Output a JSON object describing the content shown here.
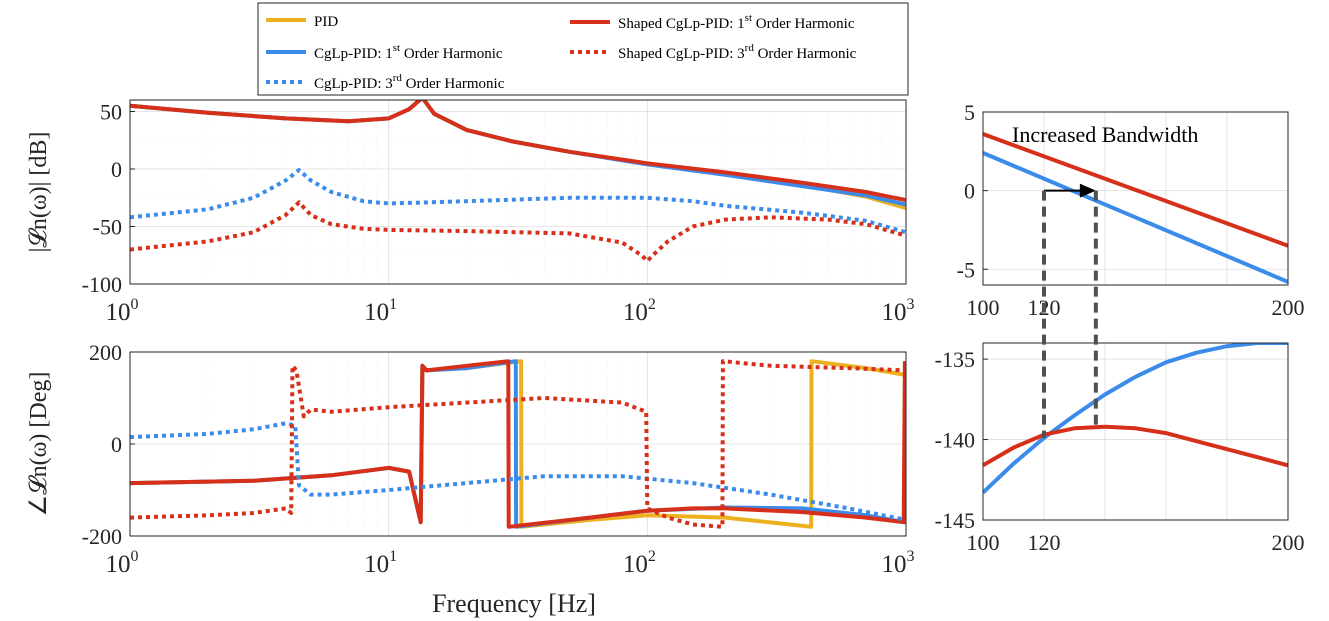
{
  "colors": {
    "pid": "#EDB120",
    "cglp": "#3B8BEB",
    "shaped": "#D7301A",
    "text": "#262626",
    "arrow": "#000000",
    "guide": "#505050"
  },
  "legend": {
    "entries": [
      {
        "id": "pid",
        "label": "PID",
        "sup": "",
        "suffix": ""
      },
      {
        "id": "cglp1",
        "label": "CgLp-PID: 1",
        "sup": "st",
        "suffix": " Order Harmonic"
      },
      {
        "id": "cglp3",
        "label": "CgLp-PID: 3",
        "sup": "rd",
        "suffix": " Order Harmonic"
      },
      {
        "id": "shaped1",
        "label": "Shaped CgLp-PID: 1",
        "sup": "st",
        "suffix": " Order Harmonic"
      },
      {
        "id": "shaped3",
        "label": "Shaped CgLp-PID: 3",
        "sup": "rd",
        "suffix": " Order Harmonic"
      }
    ]
  },
  "chart_data": [
    {
      "id": "magnitude",
      "type": "line",
      "title": "",
      "ylabel": "|𝓛n(ω)| [dB]",
      "xscale": "log",
      "xlim": [
        1,
        1000
      ],
      "ylim": [
        -100,
        60
      ],
      "yticks": [
        50,
        0,
        -50,
        -100
      ],
      "xticks": [
        {
          "base": "10",
          "exp": "0"
        },
        {
          "base": "10",
          "exp": "1"
        },
        {
          "base": "10",
          "exp": "2"
        },
        {
          "base": "10",
          "exp": "3"
        }
      ],
      "series": [
        {
          "name": "PID",
          "style": "pid",
          "x": [
            1,
            2,
            4,
            7,
            10,
            12,
            13.5,
            15,
            20,
            30,
            50,
            100,
            200,
            400,
            700,
            1000
          ],
          "y": [
            55,
            49,
            44,
            41.5,
            44,
            52,
            62,
            48,
            34,
            24,
            15,
            5,
            -4,
            -14,
            -24,
            -34
          ]
        },
        {
          "name": "CgLp-PID: 1st Order Harmonic",
          "style": "cglp",
          "x": [
            1,
            2,
            4,
            7,
            10,
            12,
            13.5,
            15,
            20,
            30,
            50,
            100,
            200,
            400,
            700,
            1000
          ],
          "y": [
            55,
            49,
            44,
            41.5,
            44,
            52,
            62,
            48,
            34,
            24,
            15,
            4,
            -5,
            -15,
            -23,
            -31
          ]
        },
        {
          "name": "Shaped CgLp-PID: 1st Order Harmonic",
          "style": "shaped",
          "x": [
            1,
            2,
            4,
            7,
            10,
            12,
            13.5,
            15,
            20,
            30,
            50,
            100,
            200,
            400,
            700,
            1000
          ],
          "y": [
            55,
            49,
            44,
            41.5,
            44,
            52,
            62,
            48,
            34,
            24,
            15,
            5,
            -3,
            -12,
            -20,
            -27
          ]
        },
        {
          "name": "CgLp-PID: 3rd Order Harmonic",
          "style": "cglp-dot",
          "x": [
            1,
            2,
            3,
            4,
            4.5,
            5,
            6,
            8,
            10,
            20,
            50,
            100,
            150,
            200,
            400,
            700,
            1000
          ],
          "y": [
            -42,
            -35,
            -25,
            -10,
            -1,
            -10,
            -20,
            -28,
            -30,
            -28,
            -25,
            -25,
            -28,
            -32,
            -38,
            -45,
            -55
          ]
        },
        {
          "name": "Shaped CgLp-PID: 3rd Order Harmonic",
          "style": "shaped-dot",
          "x": [
            1,
            2,
            3,
            4,
            4.5,
            5,
            6,
            8,
            10,
            20,
            50,
            80,
            95,
            100,
            105,
            120,
            150,
            200,
            300,
            500,
            700,
            1000
          ],
          "y": [
            -70,
            -63,
            -55,
            -40,
            -29,
            -40,
            -48,
            -52,
            -53,
            -54,
            -56,
            -64,
            -75,
            -80,
            -75,
            -63,
            -50,
            -44,
            -42,
            -44,
            -48,
            -58
          ]
        }
      ]
    },
    {
      "id": "phase",
      "type": "line",
      "title": "",
      "ylabel": "∠𝓛n(ω) [Deg]",
      "xlabel": "Frequency [Hz]",
      "xscale": "log",
      "xlim": [
        1,
        1000
      ],
      "ylim": [
        -200,
        200
      ],
      "yticks": [
        200,
        0,
        -200
      ],
      "xticks": [
        {
          "base": "10",
          "exp": "0"
        },
        {
          "base": "10",
          "exp": "1"
        },
        {
          "base": "10",
          "exp": "2"
        },
        {
          "base": "10",
          "exp": "3"
        }
      ],
      "series": [
        {
          "name": "PID",
          "style": "pid",
          "x": [
            1,
            3,
            6,
            10,
            12,
            13.3,
            13.5,
            14,
            20,
            32.5,
            32.6,
            60,
            100,
            200,
            430,
            431,
            700,
            1000
          ],
          "y": [
            -85,
            -80,
            -68,
            -52,
            -60,
            -170,
            170,
            160,
            165,
            180,
            -180,
            -165,
            -155,
            -160,
            -180,
            180,
            165,
            150
          ]
        },
        {
          "name": "CgLp-PID: 1st Order Harmonic",
          "style": "cglp",
          "x": [
            1,
            3,
            6,
            10,
            12,
            13.3,
            13.5,
            14,
            20,
            31,
            31.1,
            60,
            100,
            200,
            400,
            700,
            990,
            1000
          ],
          "y": [
            -85,
            -80,
            -68,
            -52,
            -60,
            -170,
            170,
            160,
            165,
            180,
            -180,
            -160,
            -145,
            -138,
            -140,
            -155,
            -170,
            180
          ]
        },
        {
          "name": "Shaped CgLp-PID: 1st Order Harmonic",
          "style": "shaped",
          "x": [
            1,
            3,
            6,
            10,
            12,
            13.3,
            13.5,
            14,
            20,
            29,
            29.1,
            60,
            100,
            150,
            200,
            400,
            700,
            980,
            990
          ],
          "y": [
            -85,
            -80,
            -68,
            -52,
            -60,
            -170,
            170,
            160,
            170,
            180,
            -180,
            -160,
            -145,
            -140,
            -140,
            -148,
            -160,
            -170,
            180
          ]
        },
        {
          "name": "CgLp-PID: 3rd Order Harmonic",
          "style": "cglp-dot",
          "x": [
            1,
            2,
            3,
            4,
            4.35,
            4.5,
            5,
            6,
            10,
            20,
            40,
            80,
            150,
            300,
            600,
            1000
          ],
          "y": [
            15,
            22,
            32,
            45,
            40,
            -90,
            -110,
            -110,
            -100,
            -85,
            -70,
            -70,
            -85,
            -110,
            -140,
            -165
          ]
        },
        {
          "name": "Shaped CgLp-PID: 3rd Order Harmonic",
          "style": "shaped-dot",
          "x": [
            1,
            2,
            3,
            4,
            4.2,
            4.25,
            4.4,
            4.7,
            5,
            6,
            10,
            20,
            40,
            80,
            99,
            100,
            120,
            150,
            195,
            196,
            300,
            600,
            1000
          ],
          "y": [
            -160,
            -155,
            -150,
            -140,
            -150,
            170,
            160,
            60,
            75,
            70,
            80,
            90,
            100,
            90,
            70,
            -140,
            -160,
            -175,
            -180,
            180,
            170,
            165,
            160
          ]
        }
      ]
    },
    {
      "id": "mag-zoom",
      "type": "line",
      "xscale": "linear",
      "xlim": [
        100,
        200
      ],
      "ylim": [
        -6,
        5
      ],
      "yticks": [
        5,
        0,
        -5
      ],
      "xticks": [
        "100",
        "120",
        "200"
      ],
      "xtick_values": [
        100,
        120,
        200
      ],
      "annotation": "Increased Bandwidth",
      "series": [
        {
          "name": "Shaped CgLp-PID: 1st Order Harmonic",
          "style": "shaped",
          "x": [
            100,
            200
          ],
          "y": [
            3.6,
            -3.5
          ]
        },
        {
          "name": "CgLp-PID: 1st Order Harmonic",
          "style": "cglp",
          "x": [
            100,
            200
          ],
          "y": [
            2.4,
            -5.8
          ]
        }
      ],
      "arrow": {
        "from": [
          120,
          0
        ],
        "to": [
          137,
          0
        ]
      }
    },
    {
      "id": "phase-zoom",
      "type": "line",
      "xscale": "linear",
      "xlim": [
        100,
        200
      ],
      "ylim": [
        -145,
        -134
      ],
      "yticks": [
        -135,
        -140,
        -145
      ],
      "xticks": [
        "100",
        "120",
        "200"
      ],
      "xtick_values": [
        100,
        120,
        200
      ],
      "series": [
        {
          "name": "CgLp-PID: 1st Order Harmonic",
          "style": "cglp",
          "x": [
            100,
            110,
            120,
            130,
            140,
            150,
            160,
            170,
            180,
            190,
            200
          ],
          "y": [
            -143.3,
            -141.5,
            -139.9,
            -138.5,
            -137.2,
            -136.1,
            -135.2,
            -134.6,
            -134.2,
            -134.0,
            -134.0
          ]
        },
        {
          "name": "Shaped CgLp-PID: 1st Order Harmonic",
          "style": "shaped",
          "x": [
            100,
            110,
            120,
            130,
            140,
            150,
            160,
            170,
            180,
            190,
            200
          ],
          "y": [
            -141.6,
            -140.5,
            -139.7,
            -139.3,
            -139.2,
            -139.3,
            -139.6,
            -140.1,
            -140.6,
            -141.1,
            -141.6
          ]
        }
      ]
    }
  ]
}
